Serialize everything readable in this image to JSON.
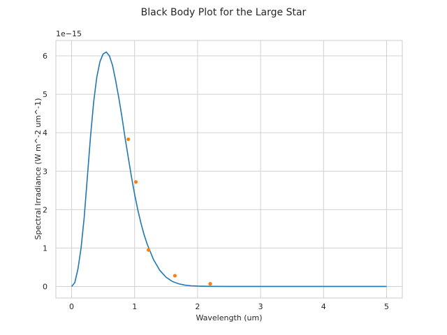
{
  "chart_data": {
    "type": "line",
    "title": "Black Body Plot for the Large Star",
    "xlabel": "Wavelength (um)",
    "ylabel": "Spectral Irradiance (W m^-2 um^-1)",
    "y_offset_label": "1e−15",
    "xlim": [
      -0.25,
      5.25
    ],
    "ylim": [
      -0.3,
      6.4
    ],
    "x_ticks": [
      0,
      1,
      2,
      3,
      4,
      5
    ],
    "y_ticks": [
      0,
      1,
      2,
      3,
      4,
      5,
      6
    ],
    "x_tick_labels": [
      "0",
      "1",
      "2",
      "3",
      "4",
      "5"
    ],
    "y_tick_labels": [
      "0",
      "1",
      "2",
      "3",
      "4",
      "5",
      "6"
    ],
    "grid": true,
    "colors": {
      "curve": "#1f77b4",
      "observations": "#ff7f0e",
      "grid": "#d0d0d0",
      "spine": "#cccccc"
    },
    "series": [
      {
        "style": "line",
        "x": [
          0.0,
          0.05,
          0.1,
          0.15,
          0.2,
          0.25,
          0.3,
          0.35,
          0.4,
          0.45,
          0.5,
          0.55,
          0.6,
          0.65,
          0.7,
          0.75,
          0.8,
          0.85,
          0.9,
          0.95,
          1.0,
          1.05,
          1.1,
          1.15,
          1.2,
          1.3,
          1.4,
          1.5,
          1.6,
          1.7,
          1.8,
          1.9,
          2.0,
          2.2,
          2.5,
          3.0,
          3.5,
          4.0,
          4.5,
          5.0
        ],
        "y": [
          0.0,
          0.1,
          0.45,
          1.0,
          1.8,
          2.85,
          3.9,
          4.8,
          5.45,
          5.85,
          6.05,
          6.1,
          6.0,
          5.75,
          5.35,
          4.9,
          4.4,
          3.85,
          3.35,
          2.85,
          2.4,
          2.0,
          1.65,
          1.35,
          1.1,
          0.7,
          0.42,
          0.24,
          0.13,
          0.07,
          0.035,
          0.018,
          0.009,
          0.003,
          0.001,
          0.0,
          0.0,
          0.0,
          0.0,
          0.0
        ]
      },
      {
        "style": "scatter",
        "x": [
          0.9,
          1.02,
          1.22,
          1.64,
          2.2
        ],
        "y": [
          3.83,
          2.72,
          0.95,
          0.28,
          0.07
        ]
      }
    ]
  }
}
